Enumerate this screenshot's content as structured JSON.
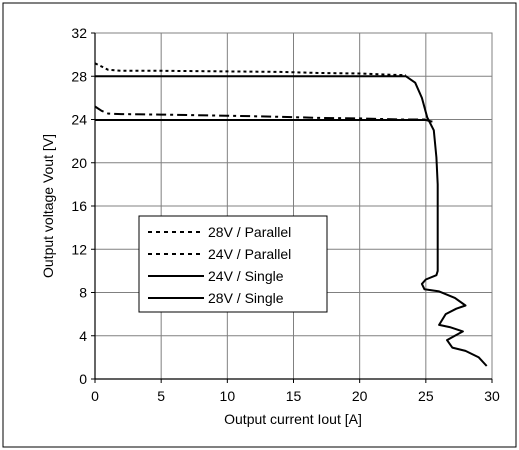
{
  "chart_data": {
    "type": "line",
    "xlabel": "Output current Iout [A]",
    "ylabel": "Output voltage Vout [V]",
    "xlim": [
      0,
      30
    ],
    "ylim": [
      0,
      32
    ],
    "x_ticks": [
      "0",
      "5",
      "10",
      "15",
      "20",
      "25",
      "30"
    ],
    "y_ticks": [
      "0",
      "4",
      "8",
      "12",
      "16",
      "20",
      "24",
      "28",
      "32"
    ],
    "grid": true,
    "legend_position": "center-left",
    "series": [
      {
        "name": "28V / Parallel",
        "style": "dotted",
        "color": "#000000",
        "points": [
          [
            0,
            29.2
          ],
          [
            0.5,
            28.9
          ],
          [
            1,
            28.6
          ],
          [
            2,
            28.5
          ],
          [
            5,
            28.5
          ],
          [
            10,
            28.45
          ],
          [
            14,
            28.4
          ],
          [
            17,
            28.3
          ],
          [
            20,
            28.25
          ],
          [
            22,
            28.15
          ],
          [
            23.5,
            28.1
          ]
        ]
      },
      {
        "name": "24V / Parallel",
        "style": "dash-dot",
        "color": "#000000",
        "points": [
          [
            0,
            25.2
          ],
          [
            0.5,
            24.8
          ],
          [
            1,
            24.55
          ],
          [
            2,
            24.5
          ],
          [
            5,
            24.45
          ],
          [
            10,
            24.35
          ],
          [
            14,
            24.25
          ],
          [
            17,
            24.15
          ],
          [
            20,
            24.1
          ],
          [
            23,
            24.0
          ],
          [
            25,
            24.0
          ]
        ]
      },
      {
        "name": "24V / Single",
        "style": "solid",
        "color": "#000000",
        "points": [
          [
            0,
            23.95
          ],
          [
            25,
            23.95
          ],
          [
            25.5,
            23.8
          ]
        ]
      },
      {
        "name": "28V / Single",
        "style": "solid",
        "color": "#000000",
        "points": [
          [
            0,
            28.0
          ],
          [
            23.5,
            28.0
          ],
          [
            24.2,
            27.4
          ],
          [
            24.7,
            26.0
          ],
          [
            25.1,
            24.2
          ],
          [
            25.6,
            23.0
          ],
          [
            25.8,
            20.5
          ],
          [
            25.9,
            18.0
          ],
          [
            25.9,
            15.0
          ],
          [
            25.9,
            12.0
          ],
          [
            25.9,
            10.0
          ],
          [
            25.8,
            9.6
          ],
          [
            25.0,
            9.2
          ],
          [
            24.7,
            8.8
          ],
          [
            24.9,
            8.3
          ],
          [
            26.0,
            8.1
          ],
          [
            27.2,
            7.5
          ],
          [
            28.0,
            6.8
          ],
          [
            27.3,
            6.5
          ],
          [
            26.5,
            6.0
          ],
          [
            26.0,
            5.0
          ],
          [
            26.8,
            4.8
          ],
          [
            27.8,
            4.4
          ],
          [
            27.2,
            4.0
          ],
          [
            26.6,
            3.6
          ],
          [
            27.0,
            2.9
          ],
          [
            28.0,
            2.6
          ],
          [
            29.0,
            2.0
          ],
          [
            29.6,
            1.2
          ]
        ]
      }
    ]
  }
}
